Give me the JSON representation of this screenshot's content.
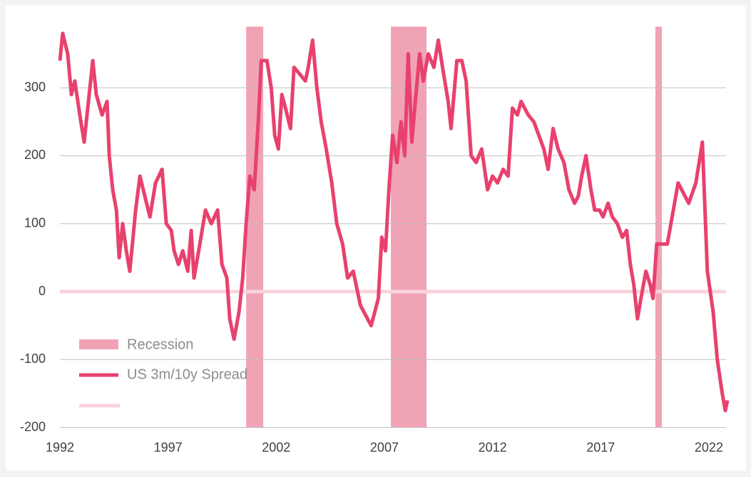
{
  "chart_data": {
    "type": "line",
    "xlim": [
      1992,
      2022.9
    ],
    "xticks": [
      1992,
      1997,
      2002,
      2007,
      2012,
      2017,
      2022
    ],
    "ylim": [
      -200,
      390
    ],
    "yticks": [
      -200,
      -100,
      0,
      100,
      200,
      300
    ],
    "grid": true,
    "recessions": {
      "name": "Recession",
      "color": "#f0a3b5",
      "spans": [
        [
          2000.61,
          2001.4
        ],
        [
          2007.3,
          2008.95
        ],
        [
          2019.53,
          2019.83
        ]
      ]
    },
    "zero_line": {
      "value": 0,
      "color": "#f9d3dc"
    },
    "x": [
      1992.0,
      1992.13,
      1992.36,
      1992.53,
      1992.69,
      1992.92,
      1993.12,
      1993.32,
      1993.52,
      1993.68,
      1993.95,
      1994.18,
      1994.28,
      1994.44,
      1994.61,
      1994.74,
      1994.9,
      1995.07,
      1995.23,
      1995.5,
      1995.7,
      1995.93,
      1996.16,
      1996.42,
      1996.72,
      1996.92,
      1997.15,
      1997.28,
      1997.48,
      1997.68,
      1997.91,
      1998.07,
      1998.2,
      1998.47,
      1998.73,
      1999.0,
      1999.29,
      1999.49,
      1999.72,
      1999.85,
      2000.05,
      2000.28,
      2000.45,
      2000.61,
      2000.78,
      2000.98,
      2001.17,
      2001.31,
      2001.57,
      2001.77,
      2001.93,
      2002.1,
      2002.26,
      2002.43,
      2002.66,
      2002.82,
      2003.09,
      2003.35,
      2003.48,
      2003.68,
      2003.88,
      2004.08,
      2004.31,
      2004.57,
      2004.8,
      2005.07,
      2005.3,
      2005.56,
      2005.89,
      2006.22,
      2006.39,
      2006.72,
      2006.88,
      2007.05,
      2007.21,
      2007.38,
      2007.58,
      2007.77,
      2007.94,
      2008.1,
      2008.27,
      2008.43,
      2008.63,
      2008.8,
      2009.03,
      2009.29,
      2009.49,
      2009.69,
      2009.95,
      2010.08,
      2010.35,
      2010.58,
      2010.78,
      2011.01,
      2011.24,
      2011.5,
      2011.77,
      2012.0,
      2012.23,
      2012.49,
      2012.72,
      2012.92,
      2013.15,
      2013.32,
      2013.65,
      2013.91,
      2014.14,
      2014.37,
      2014.57,
      2014.8,
      2015.03,
      2015.3,
      2015.53,
      2015.79,
      2015.96,
      2016.12,
      2016.32,
      2016.55,
      2016.72,
      2016.95,
      2017.11,
      2017.34,
      2017.54,
      2017.77,
      2018.0,
      2018.2,
      2018.37,
      2018.53,
      2018.7,
      2018.86,
      2019.09,
      2019.29,
      2019.42,
      2019.59,
      2020.08,
      2020.58,
      2021.07,
      2021.4,
      2021.7,
      2021.93,
      2022.2,
      2022.39,
      2022.62,
      2022.76,
      2022.86
    ],
    "series": [
      {
        "name": "US 3m/10y Spread",
        "color": "#e8416e",
        "values": [
          340,
          380,
          350,
          290,
          310,
          260,
          220,
          280,
          340,
          290,
          260,
          280,
          200,
          150,
          120,
          50,
          100,
          60,
          30,
          120,
          170,
          140,
          110,
          160,
          180,
          100,
          90,
          60,
          40,
          60,
          30,
          90,
          20,
          70,
          120,
          100,
          120,
          40,
          20,
          -40,
          -70,
          -30,
          20,
          100,
          170,
          150,
          250,
          340,
          340,
          300,
          230,
          210,
          290,
          270,
          240,
          330,
          320,
          310,
          330,
          370,
          300,
          250,
          210,
          160,
          100,
          70,
          20,
          30,
          -20,
          -40,
          -50,
          -10,
          80,
          60,
          150,
          230,
          190,
          250,
          200,
          350,
          220,
          280,
          350,
          310,
          350,
          330,
          370,
          330,
          280,
          240,
          340,
          340,
          310,
          200,
          190,
          210,
          150,
          170,
          160,
          180,
          170,
          270,
          260,
          280,
          260,
          250,
          230,
          210,
          180,
          240,
          210,
          190,
          150,
          130,
          140,
          170,
          200,
          150,
          120,
          120,
          110,
          130,
          110,
          100,
          80,
          90,
          40,
          10,
          -40,
          -10,
          30,
          10,
          -10,
          70,
          70,
          160,
          130,
          160,
          220,
          30,
          -30,
          -100,
          -150,
          -175,
          -160
        ]
      }
    ]
  }
}
